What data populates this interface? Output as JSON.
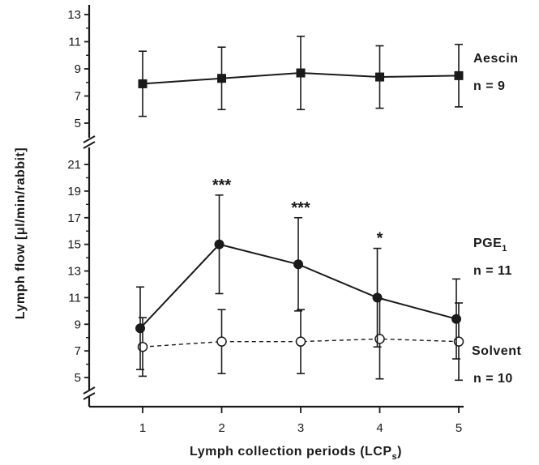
{
  "chart_data": {
    "type": "line",
    "title": "",
    "xlabel": "Lymph collection periods (LCP",
    "xlabel_subscript": "s",
    "xlabel_close": ")",
    "ylabel": "Lymph flow [μl/min/rabbit]",
    "x": [
      1,
      2,
      3,
      4,
      5
    ],
    "x_tick_labels": [
      "1",
      "2",
      "3",
      "4",
      "5"
    ],
    "upper_panel": {
      "ylim": [
        4,
        14
      ],
      "y_ticks": [
        "13",
        "11",
        "9",
        "7",
        "5"
      ],
      "series": [
        {
          "name": "Aescin",
          "n_label": "n = 9",
          "marker": "filled-square",
          "line": "solid",
          "values": [
            7.9,
            8.3,
            8.7,
            8.4,
            8.5
          ],
          "errors": [
            2.4,
            2.3,
            2.7,
            2.3,
            2.3
          ]
        }
      ]
    },
    "lower_panel": {
      "ylim": [
        3.5,
        22.5
      ],
      "y_ticks": [
        "21",
        "19",
        "17",
        "15",
        "13",
        "11",
        "9",
        "7",
        "5"
      ],
      "series": [
        {
          "name": "PGE",
          "name_subscript": "1",
          "n_label": "n = 11",
          "marker": "filled-circle",
          "line": "solid",
          "values": [
            8.7,
            15.0,
            13.5,
            11.0,
            9.4
          ],
          "errors": [
            3.1,
            3.7,
            3.5,
            3.7,
            3.0
          ],
          "significance": [
            "",
            "***",
            "***",
            "*",
            ""
          ]
        },
        {
          "name": "Solvent",
          "n_label": "n = 10",
          "marker": "open-circle",
          "line": "dashed",
          "values": [
            7.3,
            7.7,
            7.7,
            7.9,
            7.7
          ],
          "errors": [
            2.2,
            2.4,
            2.4,
            3.0,
            2.9
          ]
        }
      ]
    },
    "grid": false
  }
}
